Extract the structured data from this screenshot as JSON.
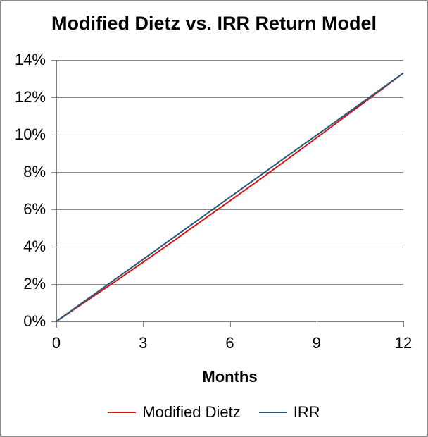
{
  "chart_data": {
    "type": "line",
    "title": "Modified Dietz vs. IRR Return Model",
    "xlabel": "Months",
    "ylabel": "",
    "xlim": [
      0,
      12
    ],
    "ylim": [
      0,
      14
    ],
    "grid": true,
    "legend_position": "bottom",
    "x": [
      0,
      1,
      2,
      3,
      4,
      5,
      6,
      7,
      8,
      9,
      10,
      11,
      12
    ],
    "series": [
      {
        "name": "Modified Dietz",
        "color": "#d91111",
        "values": [
          0,
          1.05,
          2.1,
          3.17,
          4.25,
          5.35,
          6.45,
          7.56,
          8.69,
          9.83,
          10.98,
          12.13,
          13.3
        ]
      },
      {
        "name": "IRR",
        "color": "#23597d",
        "values": [
          0,
          1.11,
          2.22,
          3.32,
          4.43,
          5.54,
          6.65,
          7.76,
          8.87,
          9.97,
          11.08,
          12.19,
          13.3
        ]
      }
    ],
    "xticks": [
      {
        "v": 0,
        "label": "0"
      },
      {
        "v": 3,
        "label": "3"
      },
      {
        "v": 6,
        "label": "6"
      },
      {
        "v": 9,
        "label": "9"
      },
      {
        "v": 12,
        "label": "12"
      }
    ],
    "yticks": [
      {
        "v": 0,
        "label": "0%"
      },
      {
        "v": 2,
        "label": "2%"
      },
      {
        "v": 4,
        "label": "4%"
      },
      {
        "v": 6,
        "label": "6%"
      },
      {
        "v": 8,
        "label": "8%"
      },
      {
        "v": 10,
        "label": "10%"
      },
      {
        "v": 12,
        "label": "12%"
      },
      {
        "v": 14,
        "label": "14%"
      }
    ],
    "gridline_color": "#898989",
    "axis_color": "#7f7f7f",
    "text_color": "#000000"
  }
}
